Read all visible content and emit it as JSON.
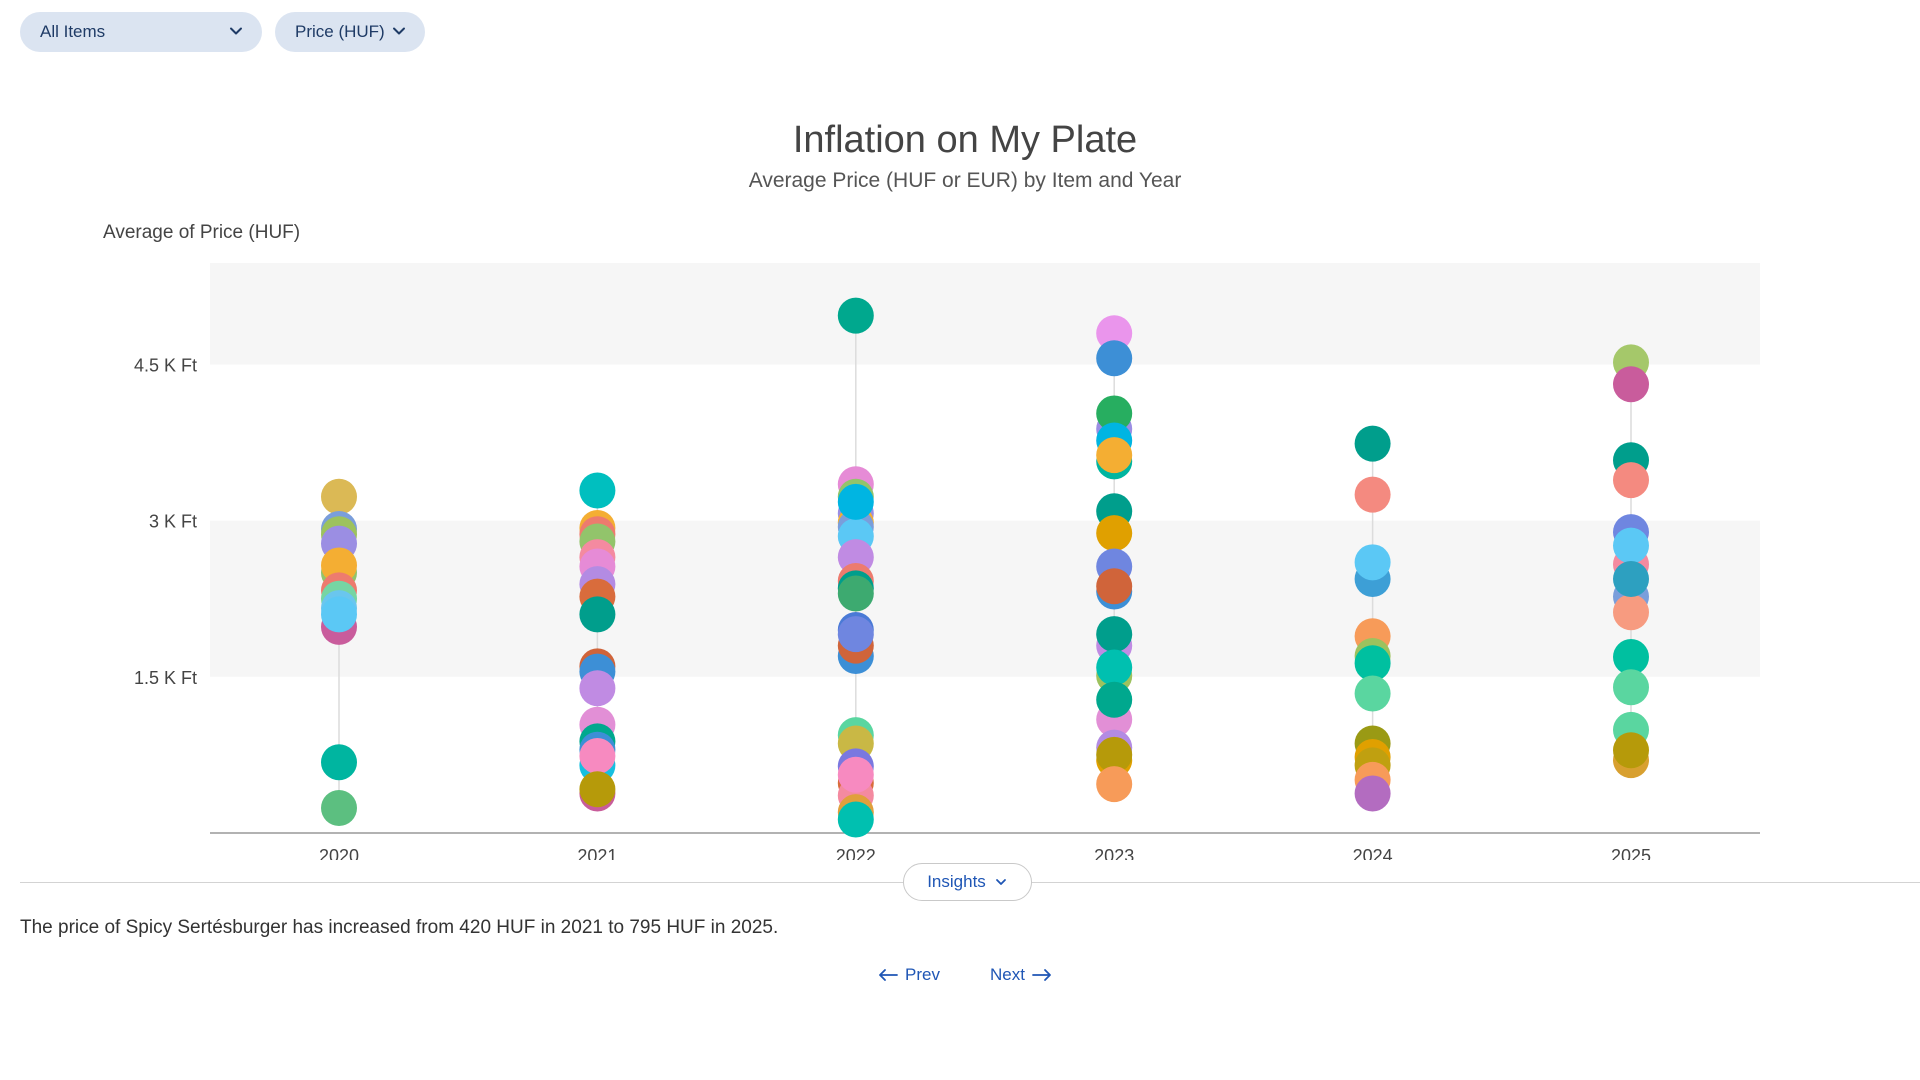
{
  "filters": {
    "items_dropdown": "All Items",
    "metric_dropdown": "Price (HUF)"
  },
  "insights": {
    "button_label": "Insights",
    "text": "The price of Spicy Sertésburger has increased from 420 HUF in 2021 to 795 HUF in 2025."
  },
  "navigation": {
    "prev_label": "Prev",
    "next_label": "Next"
  },
  "colors": {
    "accent": "#1f56b5",
    "dropdown_bg": "#dbe4f1",
    "band": "#f6f6f6"
  },
  "chart_data": {
    "type": "scatter",
    "title": "Inflation on My Plate",
    "subtitle": "Average Price (HUF or EUR) by Item and Year",
    "ylabel": "Average of Price (HUF)",
    "xlabel": "",
    "categories": [
      "2020",
      "2021",
      "2022",
      "2023",
      "2024",
      "2025"
    ],
    "ylim": [
      0,
      5475
    ],
    "yticks": [
      1500,
      3000,
      4500
    ],
    "ytick_labels": [
      "1.5 K Ft",
      "3 K Ft",
      "4.5 K Ft"
    ],
    "grid": "alternating horizontal bands",
    "legend": "none",
    "points": [
      {
        "x": "2020",
        "y": 3230,
        "color": "#dbb955"
      },
      {
        "x": "2020",
        "y": 2920,
        "color": "#7a9edb"
      },
      {
        "x": "2020",
        "y": 2870,
        "color": "#9dc25e"
      },
      {
        "x": "2020",
        "y": 2780,
        "color": "#9b8ee3"
      },
      {
        "x": "2020",
        "y": 2500,
        "color": "#92c46b"
      },
      {
        "x": "2020",
        "y": 2570,
        "color": "#f4ae33"
      },
      {
        "x": "2020",
        "y": 2330,
        "color": "#ed7b6e"
      },
      {
        "x": "2020",
        "y": 2250,
        "color": "#76d5a3"
      },
      {
        "x": "2020",
        "y": 2160,
        "color": "#6ac6ee"
      },
      {
        "x": "2020",
        "y": 1980,
        "color": "#c95c9c"
      },
      {
        "x": "2020",
        "y": 2100,
        "color": "#5bc8f5"
      },
      {
        "x": "2020",
        "y": 680,
        "color": "#00b5a0"
      },
      {
        "x": "2020",
        "y": 240,
        "color": "#5cbf80"
      },
      {
        "x": "2021",
        "y": 3290,
        "color": "#00bfbf"
      },
      {
        "x": "2021",
        "y": 2930,
        "color": "#f4ae33"
      },
      {
        "x": "2021",
        "y": 2870,
        "color": "#ed7b6e"
      },
      {
        "x": "2021",
        "y": 2800,
        "color": "#92c46b"
      },
      {
        "x": "2021",
        "y": 2650,
        "color": "#f48aa0"
      },
      {
        "x": "2021",
        "y": 2560,
        "color": "#e68bd6"
      },
      {
        "x": "2021",
        "y": 2390,
        "color": "#b38be3"
      },
      {
        "x": "2021",
        "y": 2270,
        "color": "#d96c3c"
      },
      {
        "x": "2021",
        "y": 2100,
        "color": "#009e8c"
      },
      {
        "x": "2021",
        "y": 1600,
        "color": "#d0643a"
      },
      {
        "x": "2021",
        "y": 1550,
        "color": "#3d8fd6"
      },
      {
        "x": "2021",
        "y": 1390,
        "color": "#c08be3"
      },
      {
        "x": "2021",
        "y": 1040,
        "color": "#e28fd6"
      },
      {
        "x": "2021",
        "y": 880,
        "color": "#00a88e"
      },
      {
        "x": "2021",
        "y": 800,
        "color": "#3d8fd6"
      },
      {
        "x": "2021",
        "y": 650,
        "color": "#17bfe0"
      },
      {
        "x": "2021",
        "y": 740,
        "color": "#f78ac0"
      },
      {
        "x": "2021",
        "y": 380,
        "color": "#c85c9a"
      },
      {
        "x": "2021",
        "y": 420,
        "color": "#b69a0a"
      },
      {
        "x": "2022",
        "y": 4970,
        "color": "#00a88e"
      },
      {
        "x": "2022",
        "y": 3350,
        "color": "#e68bd6"
      },
      {
        "x": "2022",
        "y": 3230,
        "color": "#92c46b"
      },
      {
        "x": "2022",
        "y": 3070,
        "color": "#9b8ee3"
      },
      {
        "x": "2022",
        "y": 2980,
        "color": "#f4ae33"
      },
      {
        "x": "2022",
        "y": 2940,
        "color": "#7a9edb"
      },
      {
        "x": "2022",
        "y": 2850,
        "color": "#5bc8f5"
      },
      {
        "x": "2022",
        "y": 3180,
        "color": "#00b5e2"
      },
      {
        "x": "2022",
        "y": 2650,
        "color": "#c08be3"
      },
      {
        "x": "2022",
        "y": 2420,
        "color": "#ed7b6e"
      },
      {
        "x": "2022",
        "y": 2350,
        "color": "#009e8c"
      },
      {
        "x": "2022",
        "y": 2300,
        "color": "#3daa70"
      },
      {
        "x": "2022",
        "y": 1950,
        "color": "#4a7ad6"
      },
      {
        "x": "2022",
        "y": 1700,
        "color": "#3d8fd6"
      },
      {
        "x": "2022",
        "y": 1800,
        "color": "#d0643a"
      },
      {
        "x": "2022",
        "y": 1910,
        "color": "#6f86e0"
      },
      {
        "x": "2022",
        "y": 940,
        "color": "#5ad6a0"
      },
      {
        "x": "2022",
        "y": 860,
        "color": "#c9b845"
      },
      {
        "x": "2022",
        "y": 640,
        "color": "#7a78e0"
      },
      {
        "x": "2022",
        "y": 480,
        "color": "#d96c3c"
      },
      {
        "x": "2022",
        "y": 360,
        "color": "#f48aa0"
      },
      {
        "x": "2022",
        "y": 200,
        "color": "#e0a03c"
      },
      {
        "x": "2022",
        "y": 130,
        "color": "#00c0b0"
      },
      {
        "x": "2022",
        "y": 560,
        "color": "#f78ac0"
      },
      {
        "x": "2023",
        "y": 4800,
        "color": "#ea95ec"
      },
      {
        "x": "2023",
        "y": 4560,
        "color": "#3d8fd6"
      },
      {
        "x": "2023",
        "y": 3880,
        "color": "#9b8ee3"
      },
      {
        "x": "2023",
        "y": 4030,
        "color": "#27ae60"
      },
      {
        "x": "2023",
        "y": 3770,
        "color": "#00b5e2"
      },
      {
        "x": "2023",
        "y": 3570,
        "color": "#00b5a0"
      },
      {
        "x": "2023",
        "y": 3630,
        "color": "#f4ae33"
      },
      {
        "x": "2023",
        "y": 3090,
        "color": "#009e8c"
      },
      {
        "x": "2023",
        "y": 2880,
        "color": "#e0a000"
      },
      {
        "x": "2023",
        "y": 2560,
        "color": "#6f86e0"
      },
      {
        "x": "2023",
        "y": 2320,
        "color": "#3d8fd6"
      },
      {
        "x": "2023",
        "y": 2370,
        "color": "#d0643a"
      },
      {
        "x": "2023",
        "y": 1800,
        "color": "#c08be3"
      },
      {
        "x": "2023",
        "y": 1910,
        "color": "#009e8c"
      },
      {
        "x": "2023",
        "y": 1510,
        "color": "#9dc25e"
      },
      {
        "x": "2023",
        "y": 1590,
        "color": "#00c0b0"
      },
      {
        "x": "2023",
        "y": 1090,
        "color": "#e28fd6"
      },
      {
        "x": "2023",
        "y": 1280,
        "color": "#00a88e"
      },
      {
        "x": "2023",
        "y": 820,
        "color": "#b38be3"
      },
      {
        "x": "2023",
        "y": 700,
        "color": "#e0a000"
      },
      {
        "x": "2023",
        "y": 750,
        "color": "#b69a0a"
      },
      {
        "x": "2023",
        "y": 470,
        "color": "#f79b59"
      },
      {
        "x": "2024",
        "y": 3740,
        "color": "#009e8c"
      },
      {
        "x": "2024",
        "y": 3250,
        "color": "#f48a80"
      },
      {
        "x": "2024",
        "y": 2440,
        "color": "#3d9fd6"
      },
      {
        "x": "2024",
        "y": 2600,
        "color": "#5bc8f5"
      },
      {
        "x": "2024",
        "y": 1890,
        "color": "#f79b59"
      },
      {
        "x": "2024",
        "y": 1700,
        "color": "#9dc25e"
      },
      {
        "x": "2024",
        "y": 1630,
        "color": "#00c0a0"
      },
      {
        "x": "2024",
        "y": 1340,
        "color": "#5ad6a0"
      },
      {
        "x": "2024",
        "y": 860,
        "color": "#9a9a14"
      },
      {
        "x": "2024",
        "y": 730,
        "color": "#e0a000"
      },
      {
        "x": "2024",
        "y": 650,
        "color": "#c0a010"
      },
      {
        "x": "2024",
        "y": 510,
        "color": "#f79b59"
      },
      {
        "x": "2024",
        "y": 380,
        "color": "#b36cc0"
      },
      {
        "x": "2025",
        "y": 4520,
        "color": "#a5c86a"
      },
      {
        "x": "2025",
        "y": 4310,
        "color": "#c95c9c"
      },
      {
        "x": "2025",
        "y": 3580,
        "color": "#009e8c"
      },
      {
        "x": "2025",
        "y": 3390,
        "color": "#f48a80"
      },
      {
        "x": "2025",
        "y": 2890,
        "color": "#6f86e0"
      },
      {
        "x": "2025",
        "y": 2580,
        "color": "#f48aa0"
      },
      {
        "x": "2025",
        "y": 2760,
        "color": "#5bc8f5"
      },
      {
        "x": "2025",
        "y": 2270,
        "color": "#7a9edb"
      },
      {
        "x": "2025",
        "y": 2120,
        "color": "#f79b80"
      },
      {
        "x": "2025",
        "y": 2440,
        "color": "#2da0c0"
      },
      {
        "x": "2025",
        "y": 1690,
        "color": "#00c0a0"
      },
      {
        "x": "2025",
        "y": 1400,
        "color": "#5ad6a0"
      },
      {
        "x": "2025",
        "y": 990,
        "color": "#5ad6a0"
      },
      {
        "x": "2025",
        "y": 700,
        "color": "#d8a030"
      },
      {
        "x": "2025",
        "y": 795,
        "color": "#b69a0a"
      }
    ]
  }
}
